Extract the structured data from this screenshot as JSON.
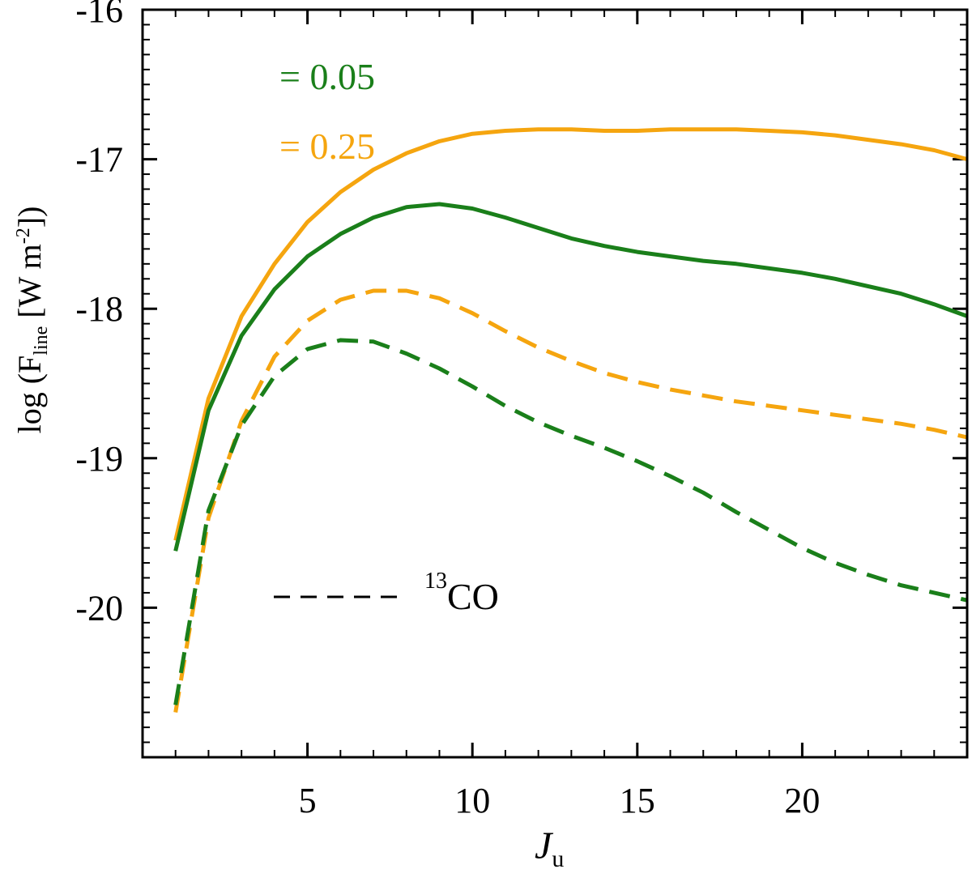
{
  "chart_data": {
    "type": "line",
    "xlabel": {
      "main": "J",
      "sub": "u"
    },
    "ylabel": {
      "prefix": "log (F",
      "sub": "line",
      "mid": " [W m",
      "sup": "-2",
      "suffix": "])"
    },
    "xlim": [
      0,
      25
    ],
    "ylim": [
      -21,
      -16
    ],
    "xticks": [
      5,
      10,
      15,
      20
    ],
    "yticks": [
      -20,
      -19,
      -18,
      -17,
      -16
    ],
    "x_minor_step": 1,
    "y_minor_step": 0.1,
    "grid": false,
    "colors": {
      "green": "#1a7f1a",
      "orange": "#f5a50f"
    },
    "legend": {
      "entries": [
        {
          "label": "= 0.05",
          "color": "#1a7f1a"
        },
        {
          "label": "= 0.25",
          "color": "#f5a50f"
        }
      ],
      "dashed_label": {
        "sup": "13",
        "text": "CO"
      }
    },
    "series": [
      {
        "color": "#f5a50f",
        "style": "solid",
        "x": [
          1,
          2,
          3,
          4,
          5,
          6,
          7,
          8,
          9,
          10,
          11,
          12,
          13,
          14,
          15,
          16,
          17,
          18,
          19,
          20,
          21,
          22,
          23,
          24,
          25
        ],
        "y": [
          -19.55,
          -18.6,
          -18.05,
          -17.7,
          -17.42,
          -17.22,
          -17.07,
          -16.96,
          -16.88,
          -16.83,
          -16.81,
          -16.8,
          -16.8,
          -16.81,
          -16.81,
          -16.8,
          -16.8,
          -16.8,
          -16.81,
          -16.82,
          -16.84,
          -16.87,
          -16.9,
          -16.94,
          -17.0
        ]
      },
      {
        "color": "#1a7f1a",
        "style": "solid",
        "x": [
          1,
          2,
          3,
          4,
          5,
          6,
          7,
          8,
          9,
          10,
          11,
          12,
          13,
          14,
          15,
          16,
          17,
          18,
          19,
          20,
          21,
          22,
          23,
          24,
          25
        ],
        "y": [
          -19.62,
          -18.68,
          -18.18,
          -17.87,
          -17.65,
          -17.5,
          -17.39,
          -17.32,
          -17.3,
          -17.33,
          -17.39,
          -17.46,
          -17.53,
          -17.58,
          -17.62,
          -17.65,
          -17.68,
          -17.7,
          -17.73,
          -17.76,
          -17.8,
          -17.85,
          -17.9,
          -17.97,
          -18.05
        ]
      },
      {
        "color": "#f5a50f",
        "style": "dashed",
        "x": [
          1,
          2,
          3,
          4,
          5,
          6,
          7,
          8,
          9,
          10,
          11,
          12,
          13,
          14,
          15,
          16,
          17,
          18,
          19,
          20,
          21,
          22,
          23,
          24,
          25
        ],
        "y": [
          -20.7,
          -19.4,
          -18.75,
          -18.32,
          -18.08,
          -17.94,
          -17.88,
          -17.88,
          -17.93,
          -18.03,
          -18.15,
          -18.26,
          -18.35,
          -18.43,
          -18.49,
          -18.54,
          -18.58,
          -18.62,
          -18.65,
          -18.68,
          -18.71,
          -18.74,
          -18.77,
          -18.81,
          -18.86
        ]
      },
      {
        "color": "#1a7f1a",
        "style": "dashed",
        "x": [
          1,
          2,
          3,
          4,
          5,
          6,
          7,
          8,
          9,
          10,
          11,
          12,
          13,
          14,
          15,
          16,
          17,
          18,
          19,
          20,
          21,
          22,
          23,
          24,
          25
        ],
        "y": [
          -20.65,
          -19.35,
          -18.78,
          -18.45,
          -18.27,
          -18.21,
          -18.22,
          -18.3,
          -18.4,
          -18.52,
          -18.65,
          -18.76,
          -18.85,
          -18.93,
          -19.02,
          -19.12,
          -19.23,
          -19.36,
          -19.48,
          -19.6,
          -19.7,
          -19.78,
          -19.85,
          -19.9,
          -19.95
        ]
      }
    ]
  }
}
